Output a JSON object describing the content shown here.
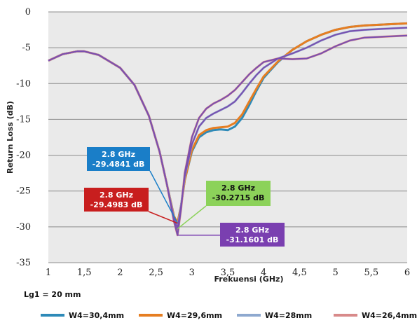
{
  "chart_data": {
    "type": "line",
    "title": "",
    "xlabel": "Frekuensi (GHz)",
    "ylabel": "Return Loss (dB)",
    "xlim": [
      1,
      6
    ],
    "ylim": [
      -35,
      0
    ],
    "x_ticks": [
      "1",
      "1,5",
      "2",
      "2,5",
      "3",
      "3,5",
      "4",
      "4,5",
      "5",
      "5,5",
      "6"
    ],
    "y_ticks": [
      "0",
      "-5",
      "-10",
      "-15",
      "-20",
      "-25",
      "-30",
      "-35"
    ],
    "grid": "horizontal",
    "legend_position": "bottom",
    "note": "Lg1 = 20 mm",
    "series": [
      {
        "name": "W4=30,4mm",
        "color": "#2e8ab8",
        "x": [
          1.0,
          1.2,
          1.4,
          1.5,
          1.7,
          2.0,
          2.2,
          2.4,
          2.55,
          2.65,
          2.75,
          2.8,
          2.85,
          2.9,
          3.0,
          3.1,
          3.2,
          3.3,
          3.4,
          3.5,
          3.6,
          3.7,
          3.8,
          3.9,
          4.0,
          4.2,
          4.4,
          4.6,
          4.8,
          5.0,
          5.2,
          5.4,
          5.6,
          5.8,
          6.0
        ],
        "y": [
          -6.8,
          -5.9,
          -5.5,
          -5.5,
          -6.0,
          -7.8,
          -10.2,
          -14.5,
          -19.5,
          -24.0,
          -28.5,
          -29.48,
          -27.0,
          -23.5,
          -19.5,
          -17.5,
          -16.8,
          -16.5,
          -16.4,
          -16.5,
          -16.0,
          -14.8,
          -13.0,
          -11.0,
          -9.2,
          -7.0,
          -5.3,
          -4.1,
          -3.2,
          -2.5,
          -2.1,
          -1.9,
          -1.8,
          -1.7,
          -1.6
        ]
      },
      {
        "name": "W4=29,6mm",
        "color": "#e67e22",
        "x": [
          1.0,
          1.2,
          1.4,
          1.5,
          1.7,
          2.0,
          2.2,
          2.4,
          2.55,
          2.65,
          2.75,
          2.8,
          2.85,
          2.9,
          3.0,
          3.1,
          3.2,
          3.3,
          3.4,
          3.5,
          3.6,
          3.7,
          3.8,
          3.9,
          4.0,
          4.2,
          4.4,
          4.6,
          4.8,
          5.0,
          5.2,
          5.4,
          5.6,
          5.8,
          6.0
        ],
        "y": [
          -6.8,
          -5.9,
          -5.5,
          -5.5,
          -6.0,
          -7.8,
          -10.2,
          -14.5,
          -19.5,
          -24.0,
          -28.5,
          -29.49,
          -27.0,
          -23.5,
          -19.3,
          -17.2,
          -16.5,
          -16.2,
          -16.1,
          -16.0,
          -15.5,
          -14.3,
          -12.5,
          -10.7,
          -9.0,
          -6.9,
          -5.3,
          -4.1,
          -3.2,
          -2.5,
          -2.1,
          -1.9,
          -1.8,
          -1.7,
          -1.6
        ]
      },
      {
        "name": "W4=28mm",
        "color": "#8ea9cf",
        "x": [
          1.0,
          1.2,
          1.4,
          1.5,
          1.7,
          2.0,
          2.2,
          2.4,
          2.55,
          2.65,
          2.75,
          2.8,
          2.85,
          2.9,
          3.0,
          3.1,
          3.2,
          3.3,
          3.4,
          3.5,
          3.6,
          3.7,
          3.8,
          3.9,
          4.0,
          4.2,
          4.4,
          4.6,
          4.8,
          5.0,
          5.2,
          5.4,
          5.6,
          5.8,
          6.0
        ],
        "y": [
          -6.8,
          -5.9,
          -5.5,
          -5.5,
          -6.0,
          -7.8,
          -10.2,
          -14.5,
          -19.5,
          -24.0,
          -28.8,
          -30.27,
          -27.0,
          -23.0,
          -18.5,
          -16.0,
          -14.8,
          -14.2,
          -13.7,
          -13.2,
          -12.5,
          -11.3,
          -10.0,
          -8.8,
          -7.8,
          -6.5,
          -5.8,
          -5.0,
          -4.0,
          -3.2,
          -2.7,
          -2.5,
          -2.4,
          -2.3,
          -2.2
        ]
      },
      {
        "name": "W4=26,4mm",
        "color": "#d88a8a",
        "x": [
          1.0,
          1.2,
          1.4,
          1.5,
          1.7,
          2.0,
          2.2,
          2.4,
          2.55,
          2.65,
          2.75,
          2.8,
          2.85,
          2.9,
          3.0,
          3.1,
          3.2,
          3.3,
          3.4,
          3.5,
          3.6,
          3.7,
          3.8,
          3.9,
          4.0,
          4.2,
          4.4,
          4.6,
          4.8,
          5.0,
          5.2,
          5.4,
          5.6,
          5.8,
          6.0
        ],
        "y": [
          -6.8,
          -5.9,
          -5.5,
          -5.5,
          -6.0,
          -7.8,
          -10.2,
          -14.5,
          -19.5,
          -24.0,
          -29.2,
          -31.16,
          -27.5,
          -22.5,
          -17.5,
          -14.8,
          -13.5,
          -12.8,
          -12.3,
          -11.7,
          -10.9,
          -9.8,
          -8.7,
          -7.8,
          -7.0,
          -6.5,
          -6.6,
          -6.5,
          -5.8,
          -4.8,
          -4.0,
          -3.6,
          -3.5,
          -3.4,
          -3.3
        ]
      }
    ],
    "overlay_lines": [
      {
        "series": "W4=28mm",
        "color": "#7a4fb0"
      },
      {
        "series": "W4=26,4mm",
        "color": "#7a4fb0"
      }
    ],
    "annotations": [
      {
        "line1": "2.8 GHz",
        "line2": "-29.4841 dB",
        "bg": "#1a7ec8",
        "fg": "#ffffff",
        "point": [
          2.8,
          -29.48
        ]
      },
      {
        "line1": "2.8 GHz",
        "line2": "-29.4983 dB",
        "bg": "#c81e1e",
        "fg": "#ffffff",
        "point": [
          2.8,
          -29.49
        ]
      },
      {
        "line1": "2.8 GHz",
        "line2": "-30.2715 dB",
        "bg": "#8cd25a",
        "fg": "#111111",
        "point": [
          2.8,
          -30.27
        ]
      },
      {
        "line1": "2.8 GHz",
        "line2": "-31.1601 dB",
        "bg": "#7a3fb0",
        "fg": "#ffffff",
        "point": [
          2.8,
          -31.16
        ]
      }
    ]
  }
}
